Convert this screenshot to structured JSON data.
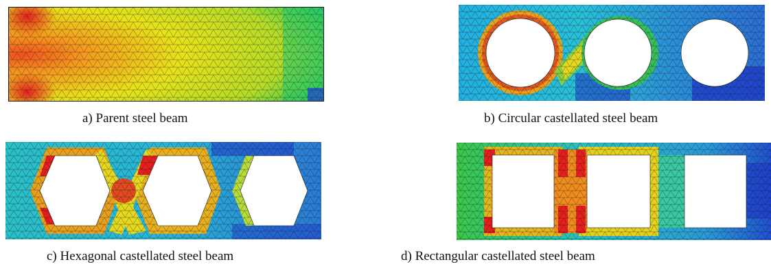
{
  "panels": [
    {
      "id": "a",
      "caption": "a) Parent steel beam",
      "hole_shape": "none"
    },
    {
      "id": "b",
      "caption": "b) Circular castellated steel beam",
      "hole_shape": "circle"
    },
    {
      "id": "c",
      "caption": "c) Hexagonal castellated steel beam",
      "hole_shape": "hexagon"
    },
    {
      "id": "d",
      "caption": "d) Rectangular castellated steel beam",
      "hole_shape": "rectangle"
    }
  ],
  "colors": {
    "low": "#1e3cc8",
    "mid_low": "#17b8d8",
    "mid": "#2ecc40",
    "mid_high": "#e6e014",
    "high": "#f08c1e",
    "max": "#e61e1e",
    "mesh": "#1a1a1a"
  }
}
